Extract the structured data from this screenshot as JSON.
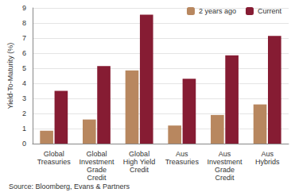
{
  "chart_data": {
    "type": "bar",
    "y_label": "Yield-To-Maturity (%)",
    "source": "Source: Bloomberg, Evans & Partners",
    "categories": [
      "Global\nTreasuries",
      "Global\nInvestment\nGrade\nCredit",
      "Global\nHigh Yield\nCredit",
      "Aus\nTreasuries",
      "Aus\nInvestment\nGrade\nCredit",
      "Aus\nHybrids"
    ],
    "series": [
      {
        "name": "2 years ago",
        "color": "#b8875f",
        "values": [
          0.85,
          1.6,
          4.85,
          1.2,
          1.9,
          2.6
        ]
      },
      {
        "name": "Current",
        "color": "#861c33",
        "values": [
          3.5,
          5.15,
          8.55,
          4.3,
          5.85,
          7.15
        ]
      }
    ],
    "ylim": [
      0,
      9
    ],
    "yticks": [
      0,
      1,
      2,
      3,
      4,
      5,
      6,
      7,
      8,
      9
    ],
    "grid": true,
    "legend": "upper right",
    "data_labels": false
  }
}
